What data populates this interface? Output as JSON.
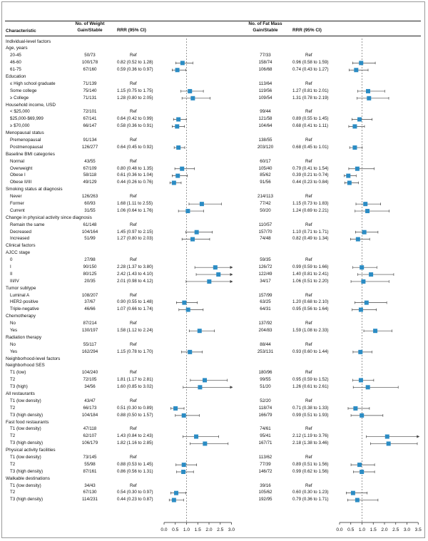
{
  "headers": {
    "characteristic": "Characteristic",
    "weight_n": [
      "No. of Weight",
      "Gain/Stable"
    ],
    "weight_rrr": "RRR (95% CI)",
    "fat_n": [
      "No. of Fat Mass",
      "Gain/Stable"
    ],
    "fat_rrr": "RRR (95% CI)"
  },
  "rows": [
    {
      "label": "Individual-level factors",
      "type": "cat"
    },
    {
      "label": "Age, years",
      "type": "cat"
    },
    {
      "label": "20-45",
      "type": "item",
      "wn": "50/73",
      "wt": "Ref",
      "fn": "77/33",
      "ft": "Ref"
    },
    {
      "label": "46-60",
      "type": "item",
      "wn": "100/178",
      "wt": "0.82 (0.52 to 1.28)",
      "w": [
        0.82,
        0.52,
        1.28
      ],
      "fn": "158/74",
      "ft": "0.96 (0.58 to 1.59)",
      "f": [
        0.96,
        0.58,
        1.59
      ]
    },
    {
      "label": "61-75",
      "type": "item",
      "wn": "67/160",
      "wt": "0.59 (0.36 to 0.97)",
      "w": [
        0.59,
        0.36,
        0.97
      ],
      "fn": "106/68",
      "ft": "0.74 (0.43 to 1.27)",
      "f": [
        0.74,
        0.43,
        1.27
      ]
    },
    {
      "label": "Education",
      "type": "cat"
    },
    {
      "label": "≤ High school graduate",
      "type": "item",
      "wn": "71/139",
      "wt": "Ref",
      "fn": "113/64",
      "ft": "Ref"
    },
    {
      "label": "Some college",
      "type": "item",
      "wn": "75/140",
      "wt": "1.15 (0.75 to 1.75)",
      "w": [
        1.15,
        0.75,
        1.75
      ],
      "fn": "119/56",
      "ft": "1.27 (0.81 to 2.01)",
      "f": [
        1.27,
        0.81,
        2.01
      ]
    },
    {
      "label": "≥ College",
      "type": "item",
      "wn": "71/131",
      "wt": "1.28 (0.80 to 2.05)",
      "w": [
        1.28,
        0.8,
        2.05
      ],
      "fn": "109/54",
      "ft": "1.31 (0.78 to 2.19)",
      "f": [
        1.31,
        0.78,
        2.19
      ]
    },
    {
      "label": "Household income, USD",
      "type": "cat"
    },
    {
      "label": "< $25,000",
      "type": "item",
      "wn": "72/101",
      "wt": "Ref",
      "fn": "99/44",
      "ft": "Ref"
    },
    {
      "label": "$25,000-$69,999",
      "type": "item",
      "wn": "67/141",
      "wt": "0.64 (0.42 to 0.99)",
      "w": [
        0.64,
        0.42,
        0.99
      ],
      "fn": "121/58",
      "ft": "0.89 (0.55 to 1.45)",
      "f": [
        0.89,
        0.55,
        1.45
      ]
    },
    {
      "label": "≥ $70,000",
      "type": "item",
      "wn": "66/147",
      "wt": "0.58 (0.36 to 0.91)",
      "w": [
        0.58,
        0.36,
        0.91
      ],
      "fn": "104/64",
      "ft": "0.68 (0.41 to 1.11)",
      "f": [
        0.68,
        0.41,
        1.11
      ]
    },
    {
      "label": "Menopausal status",
      "type": "cat"
    },
    {
      "label": "Premenopausal",
      "type": "item",
      "wn": "91/134",
      "wt": "Ref",
      "fn": "138/55",
      "ft": "Ref"
    },
    {
      "label": "Postmenopausal",
      "type": "item",
      "wn": "126/277",
      "wt": "0.64 (0.45 to 0.92)",
      "w": [
        0.64,
        0.45,
        0.92
      ],
      "fn": "203/120",
      "ft": "0.68 (0.45 to 1.01)",
      "f": [
        0.68,
        0.45,
        1.01
      ]
    },
    {
      "label": "Baseline BMI categories",
      "type": "cat"
    },
    {
      "label": "Normal",
      "type": "item",
      "wn": "43/55",
      "wt": "Ref",
      "fn": "60/17",
      "ft": "Ref"
    },
    {
      "label": "Overweight",
      "type": "item",
      "wn": "67/109",
      "wt": "0.80 (0.48 to 1.35)",
      "w": [
        0.8,
        0.48,
        1.35
      ],
      "fn": "105/40",
      "ft": "0.79 (0.41 to 1.54)",
      "f": [
        0.79,
        0.41,
        1.54
      ]
    },
    {
      "label": "Obese I",
      "type": "item",
      "wn": "58/118",
      "wt": "0.61 (0.36 to 1.04)",
      "w": [
        0.61,
        0.36,
        1.04
      ],
      "fn": "85/62",
      "ft": "0.39 (0.21 to 0.74)",
      "f": [
        0.39,
        0.21,
        0.74
      ]
    },
    {
      "label": "Obese II/III",
      "type": "item",
      "wn": "49/129",
      "wt": "0.44 (0.26 to 0.76)",
      "w": [
        0.44,
        0.26,
        0.76
      ],
      "fn": "91/56",
      "ft": "0.44 (0.23 to 0.84)",
      "f": [
        0.44,
        0.23,
        0.84
      ]
    },
    {
      "label": "Smoking status at diagnosis",
      "type": "cat"
    },
    {
      "label": "Never",
      "type": "item",
      "wn": "126/263",
      "wt": "Ref",
      "fn": "214/113",
      "ft": "Ref"
    },
    {
      "label": "Former",
      "type": "item",
      "wn": "60/93",
      "wt": "1.68 (1.11 to 2.55)",
      "w": [
        1.68,
        1.11,
        2.55
      ],
      "fn": "77/42",
      "ft": "1.15 (0.73 to 1.83)",
      "f": [
        1.15,
        0.73,
        1.83
      ]
    },
    {
      "label": "Current",
      "type": "item",
      "wn": "31/55",
      "wt": "1.06 (0.64 to 1.76)",
      "w": [
        1.06,
        0.64,
        1.76
      ],
      "fn": "50/20",
      "ft": "1.24 (0.69 to 2.21)",
      "f": [
        1.24,
        0.69,
        2.21
      ]
    },
    {
      "label": "Change in physical activity since diagnosis",
      "type": "cat"
    },
    {
      "label": "Remain the same",
      "type": "item",
      "wn": "61/148",
      "wt": "Ref",
      "fn": "110/57",
      "ft": "Ref"
    },
    {
      "label": "Decreased",
      "type": "item",
      "wn": "104/164",
      "wt": "1.45 (0.97 to 2.15)",
      "w": [
        1.45,
        0.97,
        2.15
      ],
      "fn": "157/70",
      "ft": "1.10 (0.71 to 1.71)",
      "f": [
        1.1,
        0.71,
        1.71
      ]
    },
    {
      "label": "Increased",
      "type": "item",
      "wn": "51/99",
      "wt": "1.27 (0.80 to 2.03)",
      "w": [
        1.27,
        0.8,
        2.03
      ],
      "fn": "74/48",
      "ft": "0.82 (0.49 to 1.34)",
      "f": [
        0.82,
        0.49,
        1.34
      ]
    },
    {
      "label": "Clinical factors",
      "type": "cat"
    },
    {
      "label": "AJCC stage",
      "type": "cat"
    },
    {
      "label": "0",
      "type": "item",
      "wn": "27/98",
      "wt": "Ref",
      "fn": "59/35",
      "ft": "Ref"
    },
    {
      "label": "I",
      "type": "item",
      "wn": "90/150",
      "wt": "2.28 (1.37 to 3.80)",
      "w": [
        2.28,
        1.37,
        3.8
      ],
      "fn": "126/72",
      "ft": "0.99 (0.59 to 1.66)",
      "f": [
        0.99,
        0.59,
        1.66
      ]
    },
    {
      "label": "II",
      "type": "item",
      "wn": "80/125",
      "wt": "2.42 (1.43 to 4.10)",
      "w": [
        2.42,
        1.43,
        4.1
      ],
      "fn": "122/49",
      "ft": "1.40 (0.81 to 2.41)",
      "f": [
        1.4,
        0.81,
        2.41
      ]
    },
    {
      "label": "III/IV",
      "type": "item",
      "wn": "20/35",
      "wt": "2.01 (0.98 to 4.12)",
      "w": [
        2.01,
        0.98,
        4.12
      ],
      "fn": "34/17",
      "ft": "1.06 (0.51 to 2.20)",
      "f": [
        1.06,
        0.51,
        2.2
      ]
    },
    {
      "label": "Tumor subtype",
      "type": "cat"
    },
    {
      "label": "Luminal A",
      "type": "item",
      "wn": "108/207",
      "wt": "Ref",
      "fn": "157/99",
      "ft": "Ref"
    },
    {
      "label": "HER2-positive",
      "type": "item",
      "wn": "37/67",
      "wt": "0.90 (0.55 to 1.48)",
      "w": [
        0.9,
        0.55,
        1.48
      ],
      "fn": "63/25",
      "ft": "1.20 (0.68 to 2.10)",
      "f": [
        1.2,
        0.68,
        2.1
      ]
    },
    {
      "label": "Triple-negative",
      "type": "item",
      "wn": "46/66",
      "wt": "1.07 (0.66 to 1.74)",
      "w": [
        1.07,
        0.66,
        1.74
      ],
      "fn": "64/31",
      "ft": "0.95 (0.56 to 1.64)",
      "f": [
        0.95,
        0.56,
        1.64
      ]
    },
    {
      "label": "Chemotherapy",
      "type": "cat"
    },
    {
      "label": "No",
      "type": "item",
      "wn": "87/214",
      "wt": "Ref",
      "fn": "137/92",
      "ft": "Ref"
    },
    {
      "label": "Yes",
      "type": "item",
      "wn": "130/197",
      "wt": "1.58 (1.12 to 2.24)",
      "w": [
        1.58,
        1.12,
        2.24
      ],
      "fn": "204/83",
      "ft": "1.59 (1.08 to 2.33)",
      "f": [
        1.59,
        1.08,
        2.33
      ]
    },
    {
      "label": "Radiation therapy",
      "type": "cat"
    },
    {
      "label": "No",
      "type": "item",
      "wn": "55/117",
      "wt": "Ref",
      "fn": "88/44",
      "ft": "Ref"
    },
    {
      "label": "Yes",
      "type": "item",
      "wn": "162/294",
      "wt": "1.15 (0.78 to 1.70)",
      "w": [
        1.15,
        0.78,
        1.7
      ],
      "fn": "253/131",
      "ft": "0.93 (0.60 to 1.44)",
      "f": [
        0.93,
        0.6,
        1.44
      ]
    },
    {
      "label": "Neighborhood-level factors",
      "type": "cat"
    },
    {
      "label": "Neighborhood SES",
      "type": "cat"
    },
    {
      "label": "T1 (low)",
      "type": "item",
      "wn": "104/240",
      "wt": "Ref",
      "fn": "180/96",
      "ft": "Ref"
    },
    {
      "label": "T2",
      "type": "item",
      "wn": "72/105",
      "wt": "1.81 (1.17 to 2.81)",
      "w": [
        1.81,
        1.17,
        2.81
      ],
      "fn": "99/55",
      "ft": "0.95 (0.59 to 1.52)",
      "f": [
        0.95,
        0.59,
        1.52
      ]
    },
    {
      "label": "T3 (high)",
      "type": "item",
      "wn": "34/56",
      "wt": "1.60 (0.85 to 3.02)",
      "w": [
        1.6,
        0.85,
        3.02
      ],
      "fn": "51/20",
      "ft": "1.26 (0.61 to 2.61)",
      "f": [
        1.26,
        0.61,
        2.61
      ]
    },
    {
      "label": "All restaurants",
      "type": "cat"
    },
    {
      "label": "T1 (low density)",
      "type": "item",
      "wn": "43/47",
      "wt": "Ref",
      "fn": "52/20",
      "ft": "Ref"
    },
    {
      "label": "T2",
      "type": "item",
      "wn": "66/173",
      "wt": "0.51 (0.30 to 0.89)",
      "w": [
        0.51,
        0.3,
        0.89
      ],
      "fn": "118/74",
      "ft": "0.71 (0.38 to 1.33)",
      "f": [
        0.71,
        0.38,
        1.33
      ]
    },
    {
      "label": "T3 (high density)",
      "type": "item",
      "wn": "104/184",
      "wt": "0.88 (0.50 to 1.57)",
      "w": [
        0.88,
        0.5,
        1.57
      ],
      "fn": "166/79",
      "ft": "0.99 (0.51 to 1.93)",
      "f": [
        0.99,
        0.51,
        1.93
      ]
    },
    {
      "label": "Fast food restaurants",
      "type": "cat"
    },
    {
      "label": "T1 (low density)",
      "type": "item",
      "wn": "47/118",
      "wt": "Ref",
      "fn": "74/61",
      "ft": "Ref"
    },
    {
      "label": "T2",
      "type": "item",
      "wn": "62/107",
      "wt": "1.43 (0.84 to 2.43)",
      "w": [
        1.43,
        0.84,
        2.43
      ],
      "fn": "95/41",
      "ft": "2.12 (1.19 to 3.76)",
      "f": [
        2.12,
        1.19,
        3.76
      ]
    },
    {
      "label": "T3 (high density)",
      "type": "item",
      "wn": "106/179",
      "wt": "1.82 (1.16 to 2.85)",
      "w": [
        1.82,
        1.16,
        2.85
      ],
      "fn": "167/71",
      "ft": "2.18 (1.38 to 3.46)",
      "f": [
        2.18,
        1.38,
        3.46
      ]
    },
    {
      "label": "Physical activity facilities",
      "type": "cat"
    },
    {
      "label": "T1 (low density)",
      "type": "item",
      "wn": "73/145",
      "wt": "Ref",
      "fn": "113/62",
      "ft": "Ref"
    },
    {
      "label": "T2",
      "type": "item",
      "wn": "55/98",
      "wt": "0.88 (0.53 to 1.45)",
      "w": [
        0.88,
        0.53,
        1.45
      ],
      "fn": "77/39",
      "ft": "0.89 (0.51 to 1.56)",
      "f": [
        0.89,
        0.51,
        1.56
      ]
    },
    {
      "label": "T3 (high density)",
      "type": "item",
      "wn": "87/161",
      "wt": "0.86 (0.56 to 1.31)",
      "w": [
        0.86,
        0.56,
        1.31
      ],
      "fn": "146/72",
      "ft": "0.99 (0.62 to 1.56)",
      "f": [
        0.99,
        0.62,
        1.56
      ]
    },
    {
      "label": "Walkable destinations",
      "type": "cat"
    },
    {
      "label": "T1 (low density)",
      "type": "item",
      "wn": "34/43",
      "wt": "Ref",
      "fn": "39/16",
      "ft": "Ref"
    },
    {
      "label": "T2",
      "type": "item",
      "wn": "67/130",
      "wt": "0.54 (0.30 to 0.97)",
      "w": [
        0.54,
        0.3,
        0.97
      ],
      "fn": "105/62",
      "ft": "0.60 (0.30 to 1.23)",
      "f": [
        0.6,
        0.3,
        1.23
      ]
    },
    {
      "label": "T3 (high density)",
      "type": "item",
      "wn": "114/231",
      "wt": "0.44 (0.23 to 0.87)",
      "w": [
        0.44,
        0.23,
        0.87
      ],
      "fn": "192/95",
      "ft": "0.79 (0.36 to 1.71)",
      "f": [
        0.79,
        0.36,
        1.71
      ]
    }
  ],
  "chart_data": {
    "type": "forest",
    "panels": [
      {
        "name": "Weight Gain/Stable",
        "xlim": [
          0,
          3.0
        ],
        "ticks": [
          0,
          0.5,
          1.0,
          1.5,
          2.0,
          2.5,
          3.0
        ],
        "ref_line": 1.0,
        "tick_labels": [
          "0.0",
          "0.5",
          "1.0",
          "1.5",
          "2.0",
          "2.5",
          "3.0"
        ]
      },
      {
        "name": "Fat Mass Gain/Stable",
        "xlim": [
          0,
          3.5
        ],
        "ticks": [
          0,
          0.5,
          1.0,
          1.5,
          2.0,
          2.5,
          3.0,
          3.5
        ],
        "ref_line": 1.0,
        "tick_labels": [
          "0.0",
          "0.5",
          "1.0",
          "1.5",
          "2.0",
          "2.5",
          "3.0",
          "3.5"
        ]
      }
    ],
    "marker_color": "#2b8cc4",
    "line_color": "#444444"
  }
}
